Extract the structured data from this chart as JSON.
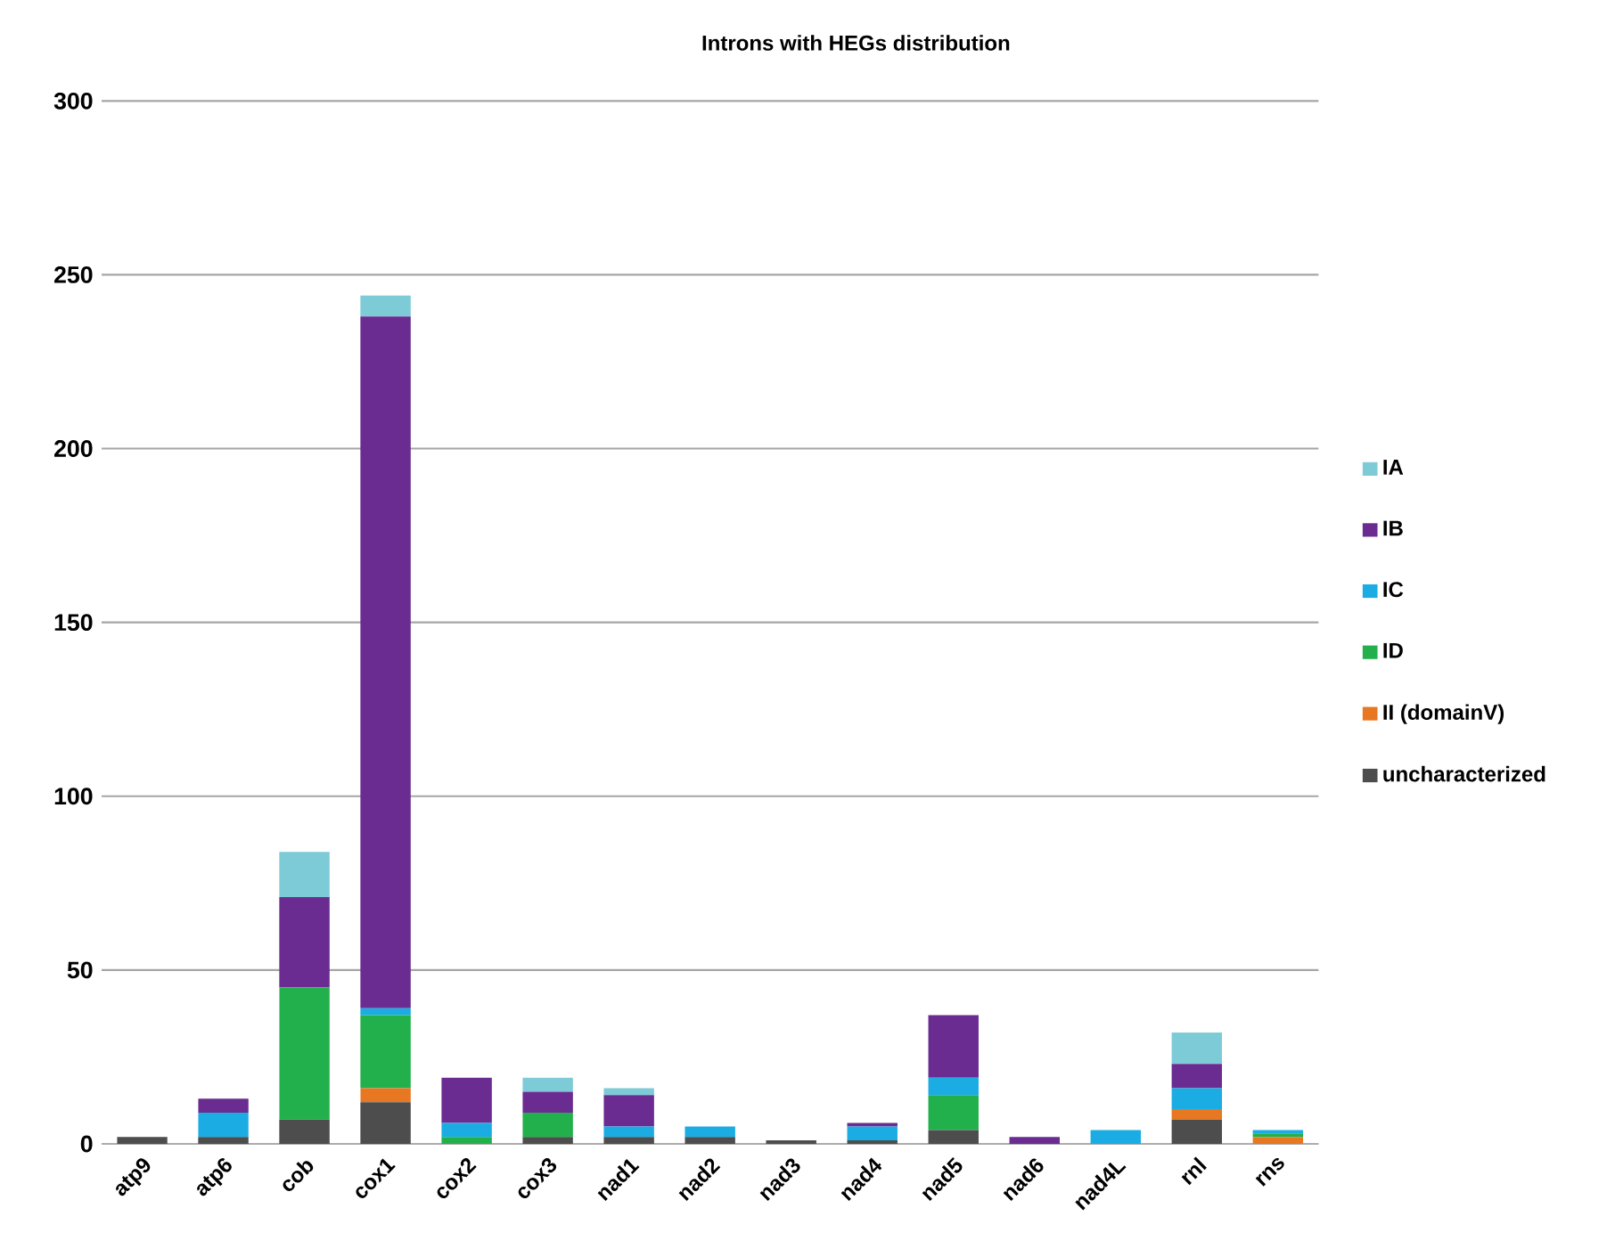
{
  "chart_data": {
    "type": "bar",
    "stacked": true,
    "title": "Introns with HEGs distribution",
    "categories": [
      "atp9",
      "atp6",
      "cob",
      "cox1",
      "cox2",
      "cox3",
      "nad1",
      "nad2",
      "nad3",
      "nad4",
      "nad5",
      "nad6",
      "nad4L",
      "rnl",
      "rns"
    ],
    "series": [
      {
        "name": "uncharacterized",
        "color": "#4d4d4d",
        "values": [
          2,
          2,
          7,
          12,
          0,
          2,
          2,
          2,
          1,
          1,
          4,
          0,
          0,
          7,
          0
        ]
      },
      {
        "name": "II (domainV)",
        "color": "#e87722",
        "values": [
          0,
          0,
          0,
          4,
          0,
          0,
          0,
          0,
          0,
          0,
          0,
          0,
          0,
          3,
          2
        ]
      },
      {
        "name": "ID",
        "color": "#22b04c",
        "values": [
          0,
          0,
          38,
          21,
          2,
          7,
          0,
          0,
          0,
          0,
          10,
          0,
          0,
          0,
          1
        ]
      },
      {
        "name": "IC",
        "color": "#1aace2",
        "values": [
          0,
          7,
          0,
          2,
          4,
          0,
          3,
          3,
          0,
          4,
          5,
          0,
          4,
          6,
          1
        ]
      },
      {
        "name": "IB",
        "color": "#6a2c91",
        "values": [
          0,
          4,
          26,
          199,
          13,
          6,
          9,
          0,
          0,
          1,
          18,
          2,
          0,
          7,
          0
        ]
      },
      {
        "name": "IA",
        "color": "#7ecbd8",
        "values": [
          0,
          0,
          13,
          6,
          0,
          4,
          2,
          0,
          0,
          0,
          0,
          0,
          0,
          9,
          0
        ]
      }
    ],
    "ylim": [
      0,
      300
    ],
    "yticks": [
      0,
      50,
      100,
      150,
      200,
      250,
      300
    ],
    "grid": "y",
    "legend": "right"
  }
}
